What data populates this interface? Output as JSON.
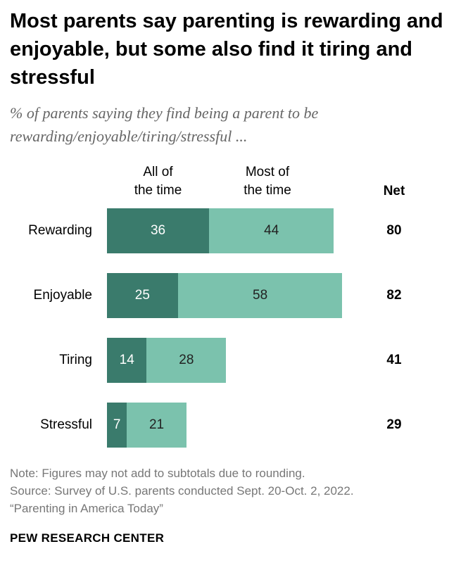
{
  "title": "Most parents say parenting is rewarding and enjoyable, but some also find it tiring and stressful",
  "subtitle": "% of parents saying they find being a parent to be rewarding/enjoyable/tiring/stressful ...",
  "chart_data": {
    "type": "bar",
    "orientation": "horizontal",
    "stacked": true,
    "categories": [
      "Rewarding",
      "Enjoyable",
      "Tiring",
      "Stressful"
    ],
    "series": [
      {
        "name": "All of the time",
        "values": [
          36,
          25,
          14,
          7
        ],
        "color": "#3a7b6c"
      },
      {
        "name": "Most of the time",
        "values": [
          44,
          58,
          28,
          21
        ],
        "color": "#7bc2ad"
      }
    ],
    "net_label": "Net",
    "net": [
      80,
      82,
      41,
      29
    ],
    "xlim": [
      0,
      100
    ],
    "grid": false
  },
  "legend_labels": [
    "All of\nthe time",
    "Most of\nthe time"
  ],
  "notes": {
    "note": "Note: Figures may not add to subtotals due to rounding.",
    "source": "Source: Survey of U.S. parents conducted Sept. 20-Oct. 2, 2022.",
    "report": "“Parenting in America Today”"
  },
  "brand": "PEW RESEARCH CENTER"
}
